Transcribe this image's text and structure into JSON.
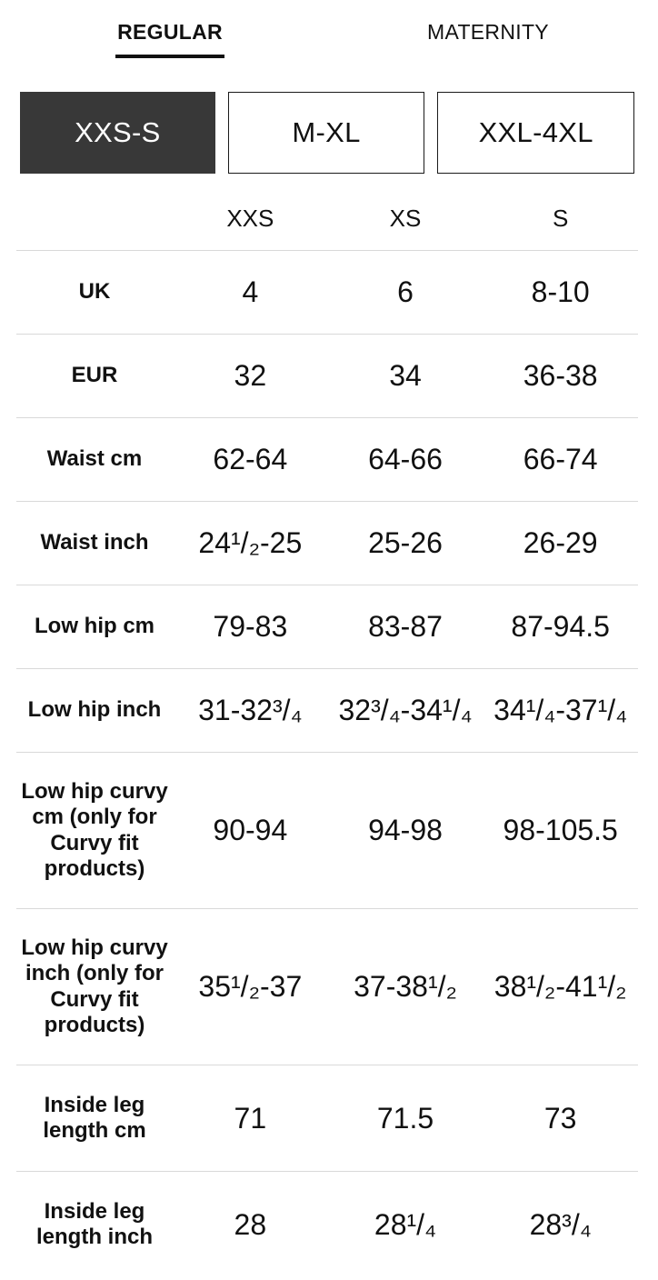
{
  "tabs": [
    {
      "label": "REGULAR",
      "active": true
    },
    {
      "label": "MATERNITY",
      "active": false
    }
  ],
  "size_ranges": [
    {
      "label": "XXS-S",
      "active": true
    },
    {
      "label": "M-XL",
      "active": false
    },
    {
      "label": "XXL-4XL",
      "active": false
    }
  ],
  "table": {
    "columns": [
      "XXS",
      "XS",
      "S"
    ],
    "rows": [
      {
        "label": "UK",
        "values": [
          "4",
          "6",
          "8-10"
        ]
      },
      {
        "label": "EUR",
        "values": [
          "32",
          "34",
          "36-38"
        ]
      },
      {
        "label": "Waist cm",
        "values": [
          "62-64",
          "64-66",
          "66-74"
        ]
      },
      {
        "label": "Waist inch",
        "values": [
          "24¹/₂-25",
          "25-26",
          "26-29"
        ]
      },
      {
        "label": "Low hip cm",
        "values": [
          "79-83",
          "83-87",
          "87-94.5"
        ]
      },
      {
        "label": "Low hip inch",
        "values": [
          "31-32³/₄",
          "32³/₄-34¹/₄",
          "34¹/₄-37¹/₄"
        ]
      },
      {
        "label": "Low hip curvy cm (only for Curvy fit products)",
        "values": [
          "90-94",
          "94-98",
          "98-105.5"
        ]
      },
      {
        "label": "Low hip curvy inch (only for Curvy fit products)",
        "values": [
          "35¹/₂-37",
          "37-38¹/₂",
          "38¹/₂-41¹/₂"
        ]
      },
      {
        "label": "Inside leg length cm",
        "values": [
          "71",
          "71.5",
          "73"
        ]
      },
      {
        "label": "Inside leg length inch",
        "values": [
          "28",
          "28¹/₄",
          "28³/₄"
        ]
      }
    ]
  },
  "colors": {
    "active_range_bg": "#383838",
    "active_range_text": "#ffffff",
    "divider": "#d9d9d9",
    "text": "#111111"
  }
}
